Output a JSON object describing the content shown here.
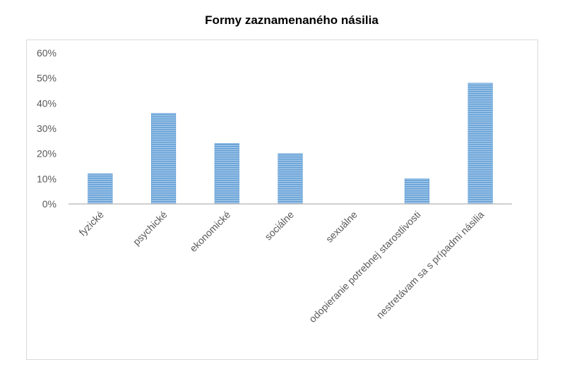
{
  "chart_data": {
    "type": "bar",
    "title": "Formy zaznamenaného násilia",
    "categories": [
      "fyzické",
      "psychické",
      "ekonomické",
      "sociálne",
      "sexuálne",
      "odopieranie potrebnej starostlivosti",
      "nestretávam sa s prípadmi násilia"
    ],
    "values": [
      0.12,
      0.36,
      0.24,
      0.2,
      0.0,
      0.1,
      0.48
    ],
    "yticks": [
      "0%",
      "10%",
      "20%",
      "30%",
      "40%",
      "50%",
      "60%"
    ],
    "ylim": [
      0,
      0.6
    ],
    "xlabel": "",
    "ylabel": "",
    "grid": false,
    "legend": "none",
    "colors": {
      "bar_fill": "#9dc3e6",
      "bar_stripe": "#5b9bd5",
      "axis": "#bfbfbf",
      "border": "#d9d9d9",
      "label": "#595959"
    }
  }
}
